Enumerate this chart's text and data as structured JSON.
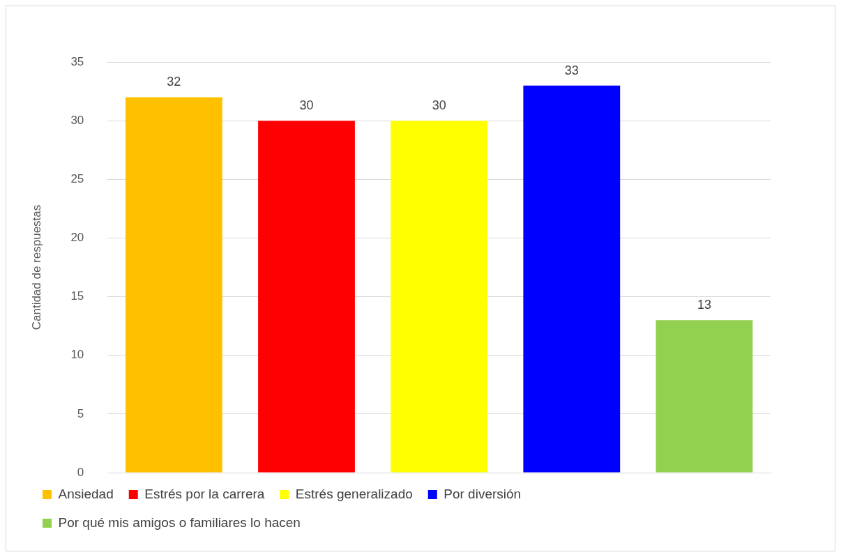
{
  "chart_data": {
    "type": "bar",
    "ylabel": "Cantidad de respuestas",
    "categories": [
      null,
      null,
      null,
      null,
      null
    ],
    "series": [
      {
        "name": "Ansiedad",
        "color": "#ffc000",
        "values": [
          32,
          null,
          null,
          null,
          null
        ]
      },
      {
        "name": "Estrés por la carrera",
        "color": "#ff0000",
        "values": [
          null,
          30,
          null,
          null,
          null
        ]
      },
      {
        "name": "Estrés generalizado",
        "color": "#ffff00",
        "values": [
          null,
          null,
          30,
          null,
          null
        ]
      },
      {
        "name": "Por diversión",
        "color": "#0000ff",
        "values": [
          null,
          null,
          null,
          33,
          null
        ]
      },
      {
        "name": "Por qué mis amigos o familiares lo hacen",
        "color": "#92d050",
        "values": [
          null,
          null,
          null,
          null,
          13
        ]
      }
    ],
    "ylim": [
      0,
      35
    ],
    "yticks": [
      0,
      5,
      10,
      15,
      20,
      25,
      30,
      35
    ],
    "grid": "y",
    "legend": "bottom",
    "tick_labels": "y",
    "data_labels": true
  }
}
